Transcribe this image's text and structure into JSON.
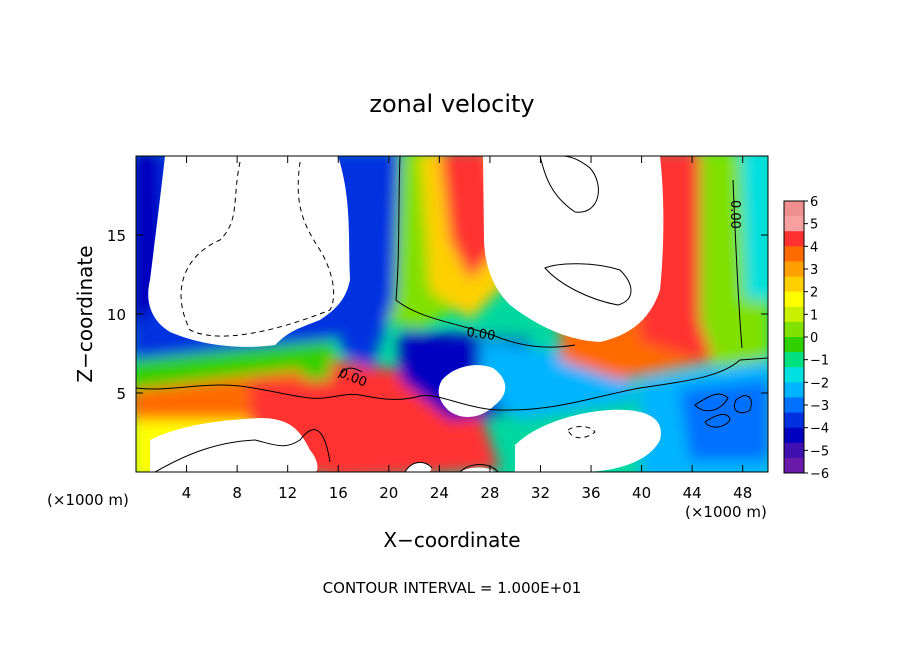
{
  "chart_data": {
    "type": "heatmap",
    "title": "zonal velocity",
    "xlabel": "X−coordinate",
    "ylabel": "Z−coordinate",
    "x_unit_left": "(×1000 m)",
    "x_unit_right": "(×1000 m)",
    "xlim": [
      0,
      50
    ],
    "ylim": [
      0,
      20
    ],
    "x_ticks": [
      4,
      8,
      12,
      16,
      20,
      24,
      28,
      32,
      36,
      40,
      44,
      48
    ],
    "y_ticks": [
      5,
      10,
      15
    ],
    "footer": "CONTOUR INTERVAL = 1.000E+01",
    "contour_labels": [
      "0.00",
      "0.00",
      "0.00"
    ],
    "colorbar": {
      "range": [
        -6,
        6
      ],
      "ticks": [
        6,
        5,
        4,
        3,
        2,
        1,
        0,
        -1,
        -2,
        -3,
        -4,
        -5,
        -6
      ],
      "colors": [
        "#f08f8f",
        "#f8a0a0",
        "#ff3030",
        "#ff6a00",
        "#ffa000",
        "#ffd000",
        "#ffff00",
        "#c8f000",
        "#80e000",
        "#30d000",
        "#00e080",
        "#00e0e0",
        "#00b4ff",
        "#0070ff",
        "#0030e0",
        "#0000c0",
        "#4010b0",
        "#6a1aa8"
      ]
    }
  }
}
